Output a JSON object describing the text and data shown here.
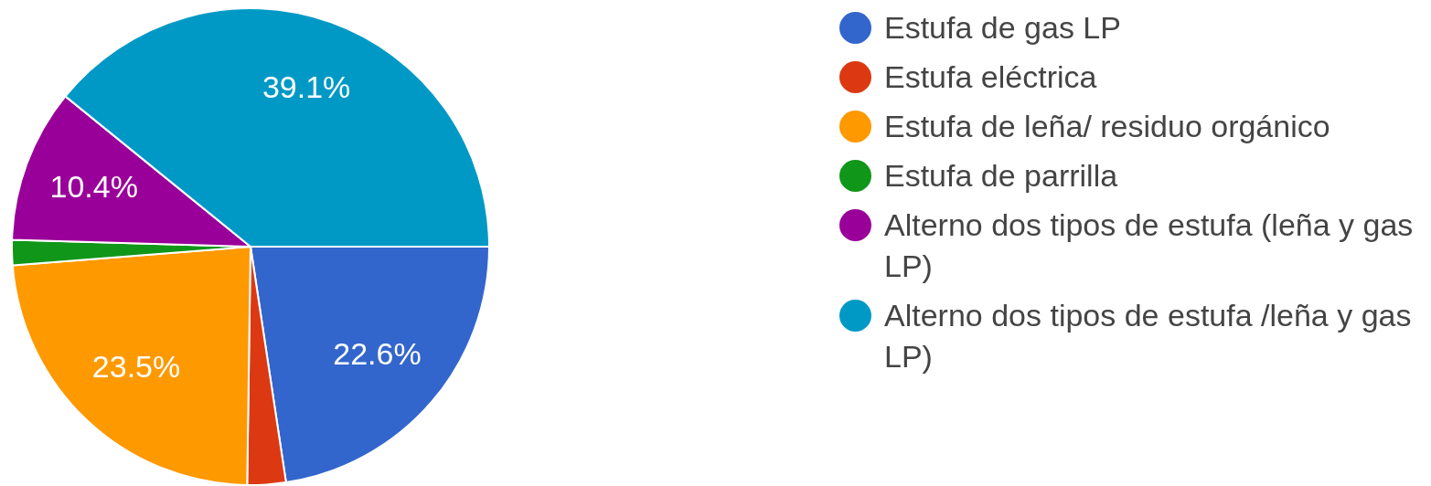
{
  "chart_data": {
    "type": "pie",
    "categories": [
      "Estufa de gas LP",
      "Estufa eléctrica",
      "Estufa de leña/ residuo orgánico",
      "Estufa de parrilla",
      "Alterno dos tipos de estufa (leña y gas LP)",
      "Alterno dos tipos de estufa /leña y gas LP)"
    ],
    "values": [
      22.6,
      2.6,
      23.5,
      1.7,
      10.4,
      39.1
    ],
    "colors": [
      "#3366cc",
      "#dc3912",
      "#ff9900",
      "#109618",
      "#990099",
      "#0099c6"
    ],
    "value_labels": [
      "22.6%",
      null,
      "23.5%",
      null,
      "10.4%",
      "39.1%"
    ],
    "legend": "right"
  }
}
